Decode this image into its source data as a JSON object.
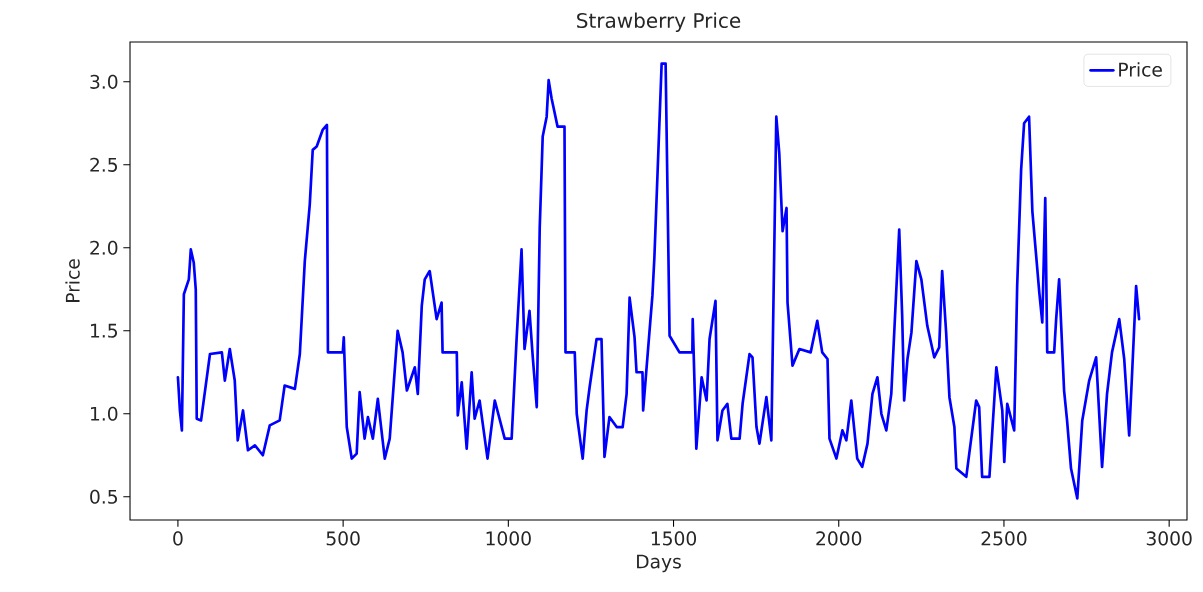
{
  "chart_data": {
    "type": "line",
    "title": "Strawberry Price",
    "xlabel": "Days",
    "ylabel": "Price",
    "x": [
      0,
      6,
      12,
      18,
      33,
      39,
      48,
      54,
      57,
      70,
      97,
      133,
      142,
      157,
      172,
      181,
      197,
      212,
      233,
      257,
      278,
      308,
      323,
      354,
      369,
      384,
      399,
      408,
      420,
      438,
      451,
      454,
      499,
      502,
      511,
      526,
      541,
      550,
      565,
      575,
      590,
      605,
      626,
      641,
      665,
      680,
      693,
      717,
      726,
      738,
      747,
      762,
      783,
      798,
      801,
      844,
      847,
      859,
      874,
      889,
      898,
      913,
      937,
      959,
      989,
      1010,
      1025,
      1040,
      1049,
      1064,
      1074,
      1086,
      1095,
      1104,
      1116,
      1122,
      1131,
      1149,
      1170,
      1173,
      1201,
      1207,
      1225,
      1237,
      1246,
      1267,
      1282,
      1291,
      1306,
      1328,
      1346,
      1358,
      1367,
      1382,
      1388,
      1406,
      1408,
      1427,
      1436,
      1442,
      1464,
      1476,
      1482,
      1488,
      1518,
      1557,
      1558,
      1569,
      1585,
      1600,
      1609,
      1627,
      1633,
      1648,
      1663,
      1675,
      1700,
      1709,
      1730,
      1739,
      1751,
      1760,
      1781,
      1796,
      1811,
      1820,
      1830,
      1842,
      1845,
      1860,
      1881,
      1915,
      1935,
      1950,
      1966,
      1972,
      1993,
      2011,
      2023,
      2038,
      2056,
      2071,
      2087,
      2102,
      2117,
      2129,
      2144,
      2159,
      2183,
      2192,
      2198,
      2208,
      2220,
      2235,
      2250,
      2268,
      2289,
      2304,
      2313,
      2325,
      2335,
      2350,
      2356,
      2386,
      2395,
      2416,
      2425,
      2434,
      2456,
      2477,
      2495,
      2501,
      2510,
      2531,
      2540,
      2552,
      2561,
      2576,
      2586,
      2607,
      2616,
      2625,
      2631,
      2652,
      2658,
      2667,
      2682,
      2691,
      2703,
      2722,
      2737,
      2758,
      2779,
      2797,
      2812,
      2827,
      2849,
      2864,
      2879,
      2888,
      2900,
      2909
    ],
    "series": [
      {
        "name": "Price",
        "color": "#0000ff",
        "values": [
          1.22,
          1.02,
          0.9,
          1.72,
          1.81,
          1.99,
          1.91,
          1.75,
          0.97,
          0.96,
          1.36,
          1.37,
          1.2,
          1.39,
          1.2,
          0.84,
          1.02,
          0.78,
          0.81,
          0.75,
          0.93,
          0.96,
          1.17,
          1.15,
          1.36,
          1.92,
          2.26,
          2.59,
          2.61,
          2.71,
          2.74,
          1.37,
          1.37,
          1.46,
          0.92,
          0.73,
          0.76,
          1.13,
          0.85,
          0.98,
          0.85,
          1.09,
          0.73,
          0.85,
          1.5,
          1.37,
          1.14,
          1.28,
          1.12,
          1.65,
          1.81,
          1.86,
          1.57,
          1.67,
          1.37,
          1.37,
          0.99,
          1.19,
          0.79,
          1.25,
          0.97,
          1.08,
          0.73,
          1.08,
          0.85,
          0.85,
          1.45,
          1.99,
          1.39,
          1.62,
          1.34,
          1.04,
          2.12,
          2.67,
          2.79,
          3.01,
          2.9,
          2.73,
          2.73,
          1.37,
          1.37,
          1.0,
          0.73,
          1.02,
          1.16,
          1.45,
          1.45,
          0.74,
          0.98,
          0.92,
          0.92,
          1.12,
          1.7,
          1.46,
          1.25,
          1.25,
          1.02,
          1.49,
          1.71,
          1.94,
          3.11,
          3.11,
          2.3,
          1.47,
          1.37,
          1.37,
          1.57,
          0.79,
          1.22,
          1.08,
          1.45,
          1.68,
          0.84,
          1.02,
          1.06,
          0.85,
          0.85,
          1.06,
          1.36,
          1.34,
          0.92,
          0.82,
          1.1,
          0.84,
          2.79,
          2.57,
          2.1,
          2.24,
          1.67,
          1.29,
          1.39,
          1.37,
          1.56,
          1.37,
          1.33,
          0.85,
          0.73,
          0.9,
          0.84,
          1.08,
          0.73,
          0.68,
          0.82,
          1.12,
          1.22,
          1.0,
          0.9,
          1.12,
          2.11,
          1.59,
          1.08,
          1.33,
          1.49,
          1.92,
          1.81,
          1.53,
          1.34,
          1.4,
          1.86,
          1.49,
          1.1,
          0.92,
          0.67,
          0.62,
          0.76,
          1.08,
          1.04,
          0.62,
          0.62,
          1.28,
          1.02,
          0.71,
          1.06,
          0.9,
          1.77,
          2.47,
          2.75,
          2.79,
          2.22,
          1.73,
          1.55,
          2.3,
          1.37,
          1.37,
          1.57,
          1.81,
          1.14,
          0.96,
          0.67,
          0.49,
          0.96,
          1.2,
          1.34,
          0.68,
          1.12,
          1.37,
          1.57,
          1.33,
          0.87,
          1.25,
          1.77,
          1.57
        ]
      }
    ],
    "xlim": [
      -145,
      3054
    ],
    "ylim": [
      0.36,
      3.24
    ],
    "xticks": [
      0,
      500,
      1000,
      1500,
      2000,
      2500,
      3000
    ],
    "yticks": [
      0.5,
      {
        "value": 1,
        "label": "1.0"
      },
      1.5,
      {
        "value": 2,
        "label": "2.0"
      },
      2.5,
      {
        "value": 3,
        "label": "3.0"
      }
    ],
    "legend": "top right",
    "marker": "none"
  }
}
